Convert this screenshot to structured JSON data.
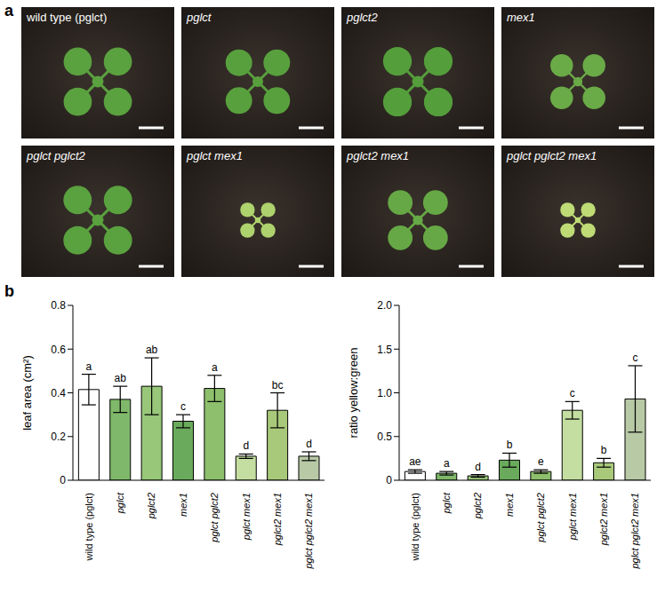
{
  "panel_letters": [
    "a",
    "b"
  ],
  "chart_data": [
    {
      "type": "bar",
      "y_label": "leaf area (cm²)",
      "categories": [
        "wild type (pglct)",
        "pglct",
        "pglct2",
        "mex1",
        "pglct pglct2",
        "pglct mex1",
        "pglct2 mex1",
        "pglct pglct2 mex1"
      ],
      "values": [
        0.415,
        0.37,
        0.43,
        0.27,
        0.42,
        0.11,
        0.32,
        0.11
      ],
      "errors": [
        0.07,
        0.06,
        0.13,
        0.03,
        0.06,
        0.01,
        0.08,
        0.02
      ],
      "letters": [
        "a",
        "ab",
        "ab",
        "c",
        "a",
        "d",
        "bc",
        "d"
      ],
      "colors": [
        "#ffffff",
        "#7fb86a",
        "#98c779",
        "#6aaa5c",
        "#8dbf6c",
        "#c3dea0",
        "#a9c97a",
        "#b8c9a6"
      ],
      "ylim": [
        0,
        0.8
      ],
      "yticks": [
        0,
        0.2,
        0.4,
        0.6,
        0.8
      ]
    },
    {
      "type": "bar",
      "y_label": "ratio yellow:green",
      "categories": [
        "wild type (pglct)",
        "pglct",
        "pglct2",
        "mex1",
        "pglct pglct2",
        "pglct mex1",
        "pglct2 mex1",
        "pglct pglct2 mex1"
      ],
      "values": [
        0.1,
        0.08,
        0.05,
        0.23,
        0.1,
        0.8,
        0.2,
        0.93
      ],
      "errors": [
        0.02,
        0.02,
        0.015,
        0.08,
        0.02,
        0.1,
        0.05,
        0.38
      ],
      "letters": [
        "ae",
        "a",
        "d",
        "b",
        "e",
        "c",
        "b",
        "c"
      ],
      "colors": [
        "#ffffff",
        "#7fb86a",
        "#98c779",
        "#6aaa5c",
        "#8dbf6c",
        "#c3dea0",
        "#a9c97a",
        "#b8c9a6"
      ],
      "ylim": [
        0,
        2
      ],
      "yticks": [
        0,
        0.5,
        {
          "value": 1,
          "label": "1.0"
        },
        1.5,
        {
          "value": 2,
          "label": "2.0"
        }
      ]
    }
  ]
}
